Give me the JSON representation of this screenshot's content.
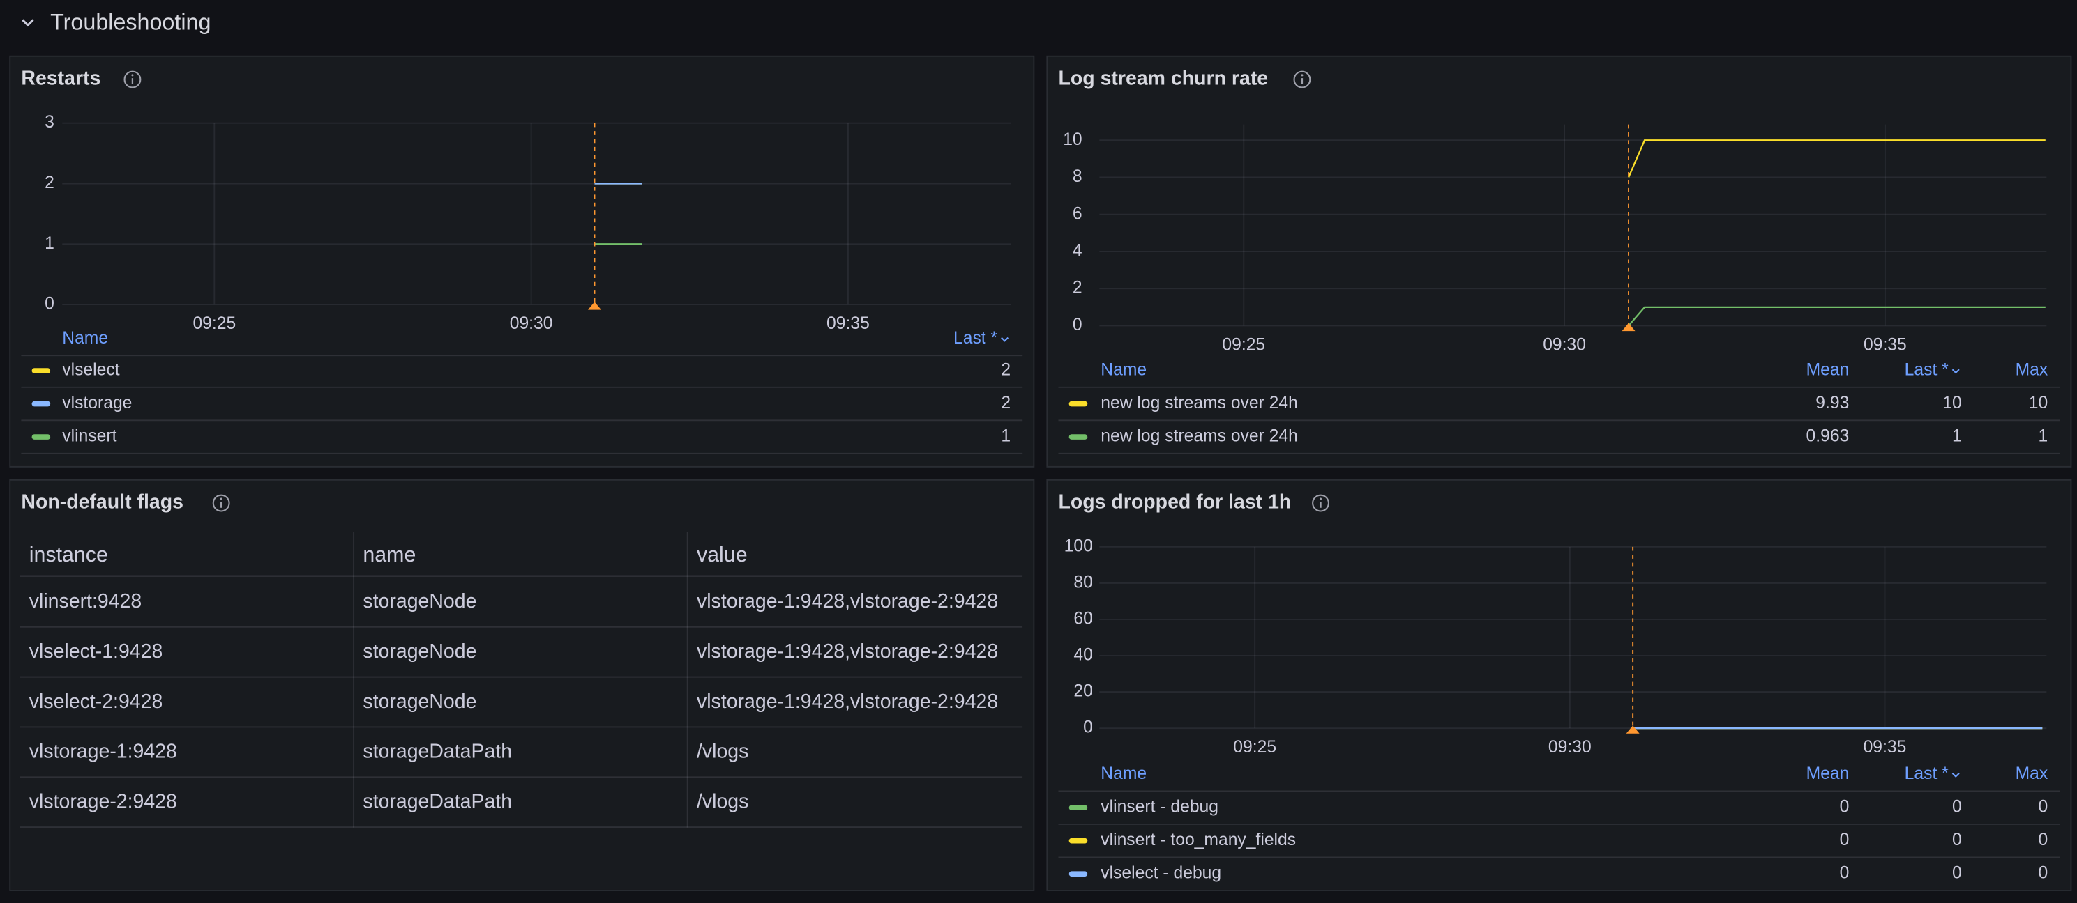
{
  "header": {
    "title": "Troubleshooting"
  },
  "chart_data": [
    {
      "type": "line",
      "title": "Restarts",
      "x": [
        "09:31",
        "09:31:45"
      ],
      "xlim": [
        "09:22:36",
        "09:37:34"
      ],
      "xticks": [
        "09:25",
        "09:30",
        "09:35"
      ],
      "ylim": [
        0,
        3
      ],
      "yticks": [
        0,
        1,
        2,
        3
      ],
      "grid": true,
      "annotation": {
        "x": "09:31",
        "color": "#ff9830"
      },
      "legend_columns": [
        "Name",
        "Last *"
      ],
      "series": [
        {
          "name": "vlselect",
          "color": "#fade2a",
          "values": [
            2,
            2
          ],
          "legend_values": [
            2
          ]
        },
        {
          "name": "vlstorage",
          "color": "#8ab8ff",
          "values": [
            2,
            2
          ],
          "legend_values": [
            2
          ]
        },
        {
          "name": "vlinsert",
          "color": "#73bf69",
          "values": [
            1,
            1
          ],
          "legend_values": [
            1
          ]
        }
      ]
    },
    {
      "type": "line",
      "title": "Log stream churn rate",
      "x": [
        "09:31",
        "09:31:15",
        "09:37:30"
      ],
      "xlim": [
        "09:22:45",
        "09:37:31"
      ],
      "xticks": [
        "09:25",
        "09:30",
        "09:35"
      ],
      "ylim": [
        0,
        10.85
      ],
      "yticks": [
        0,
        2,
        4,
        6,
        8,
        10
      ],
      "grid": true,
      "annotation": {
        "x": "09:31",
        "color": "#ff9830"
      },
      "legend_columns": [
        "Name",
        "Mean",
        "Last *",
        "Max"
      ],
      "series": [
        {
          "name": "new log streams over 24h",
          "color": "#fade2a",
          "values": [
            8,
            10,
            10
          ],
          "legend_values": [
            9.93,
            10,
            10
          ]
        },
        {
          "name": "new log streams over 24h",
          "color": "#73bf69",
          "values": [
            0,
            1,
            1
          ],
          "legend_values": [
            0.963,
            1,
            1
          ]
        }
      ]
    },
    {
      "type": "line",
      "title": "Logs dropped for last 1h",
      "x": [
        "09:31",
        "09:37:30"
      ],
      "xlim": [
        "09:22:32",
        "09:37:34"
      ],
      "xticks": [
        "09:25",
        "09:30",
        "09:35"
      ],
      "ylim": [
        0,
        100
      ],
      "yticks": [
        0,
        20,
        40,
        60,
        80,
        100
      ],
      "grid": true,
      "annotation": {
        "x": "09:31",
        "color": "#ff9830"
      },
      "legend_columns": [
        "Name",
        "Mean",
        "Last *",
        "Max"
      ],
      "series": [
        {
          "name": "vlinsert - debug",
          "color": "#73bf69",
          "values": [
            0,
            0
          ],
          "legend_values": [
            0,
            0,
            0
          ]
        },
        {
          "name": "vlinsert - too_many_fields",
          "color": "#fade2a",
          "values": [
            0,
            0
          ],
          "legend_values": [
            0,
            0,
            0
          ]
        },
        {
          "name": "vlselect - debug",
          "color": "#8ab8ff",
          "values": [
            0,
            0
          ],
          "legend_values": [
            0,
            0,
            0
          ]
        }
      ]
    }
  ],
  "table": {
    "title": "Non-default flags",
    "columns": [
      "instance",
      "name",
      "value"
    ],
    "rows": [
      [
        "vlinsert:9428",
        "storageNode",
        "vlstorage-1:9428,vlstorage-2:9428"
      ],
      [
        "vlselect-1:9428",
        "storageNode",
        "vlstorage-1:9428,vlstorage-2:9428"
      ],
      [
        "vlselect-2:9428",
        "storageNode",
        "vlstorage-1:9428,vlstorage-2:9428"
      ],
      [
        "vlstorage-1:9428",
        "storageDataPath",
        "/vlogs"
      ],
      [
        "vlstorage-2:9428",
        "storageDataPath",
        "/vlogs"
      ]
    ]
  }
}
